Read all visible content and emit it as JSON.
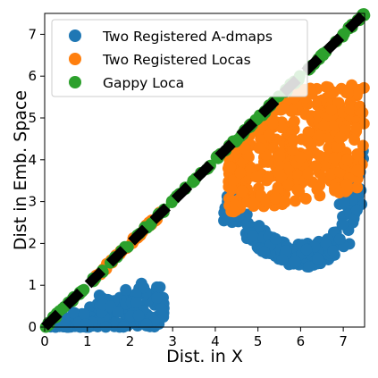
{
  "chart_data": {
    "type": "scatter",
    "xlabel": "Dist. in X",
    "ylabel": "Dist in Emb. Space",
    "xlim": [
      0,
      7.5
    ],
    "ylim": [
      0,
      7.5
    ],
    "xticks": [
      "0",
      "1",
      "2",
      "3",
      "4",
      "5",
      "6",
      "7"
    ],
    "yticks": [
      "0",
      "1",
      "2",
      "3",
      "4",
      "5",
      "6",
      "7"
    ],
    "grid": false,
    "legend_position": "top-left",
    "reference_line": {
      "style": "dashed",
      "color": "#000000",
      "from": [
        0,
        0
      ],
      "to": [
        7.5,
        7.5
      ]
    },
    "series": [
      {
        "name": "Two Registered A-dmaps",
        "color": "#1f77b4",
        "regions": [
          {
            "shape": "wedge",
            "x": [
              0.1,
              2.8
            ],
            "y_min": 0.0,
            "y_max_slope": 0.32,
            "n": 220
          },
          {
            "shape": "curve",
            "x": [
              4.2,
              7.5
            ],
            "center": [
              6.0,
              1.6
            ],
            "spread": 0.35,
            "n": 220
          }
        ]
      },
      {
        "name": "Two Registered Locas",
        "color": "#ff7f0e",
        "regions": [
          {
            "shape": "cloud",
            "x": [
              4.3,
              7.5
            ],
            "y": [
              2.6,
              5.8
            ],
            "n": 420
          },
          {
            "shape": "near-diagonal",
            "x": [
              1.0,
              2.7
            ],
            "offset": 0.0,
            "n": 40
          }
        ]
      },
      {
        "name": "Gappy Loca",
        "color": "#2ca02c",
        "regions": [
          {
            "shape": "diagonal",
            "x": [
              0.0,
              7.5
            ],
            "offset": 0.0,
            "n": 150
          }
        ]
      }
    ]
  }
}
